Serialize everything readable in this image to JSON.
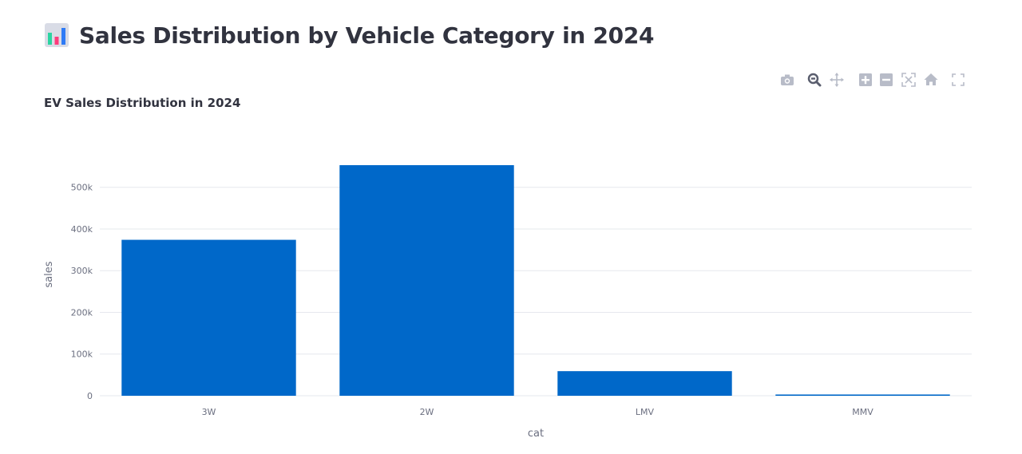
{
  "page": {
    "title": "Sales Distribution by Vehicle Category in 2024",
    "title_icon": "bar-chart-icon"
  },
  "modebar": {
    "buttons": [
      "camera-icon",
      "zoom-icon",
      "pan-icon",
      "zoom-in-icon",
      "zoom-out-icon",
      "autoscale-icon",
      "reset-axes-home-icon",
      "fullscreen-icon"
    ]
  },
  "chart_data": {
    "type": "bar",
    "title": "EV Sales Distribution in 2024",
    "xlabel": "cat",
    "ylabel": "sales",
    "categories": [
      "3W",
      "2W",
      "LMV",
      "MMV"
    ],
    "values": [
      374000,
      553000,
      59000,
      3000
    ],
    "ylim": [
      0,
      553000
    ],
    "yticks": [
      0,
      100000,
      200000,
      300000,
      400000,
      500000
    ],
    "ytick_labels": [
      "0",
      "100k",
      "200k",
      "300k",
      "400k",
      "500k"
    ],
    "bar_color": "#0068c9",
    "grid": true,
    "legend": "none"
  }
}
